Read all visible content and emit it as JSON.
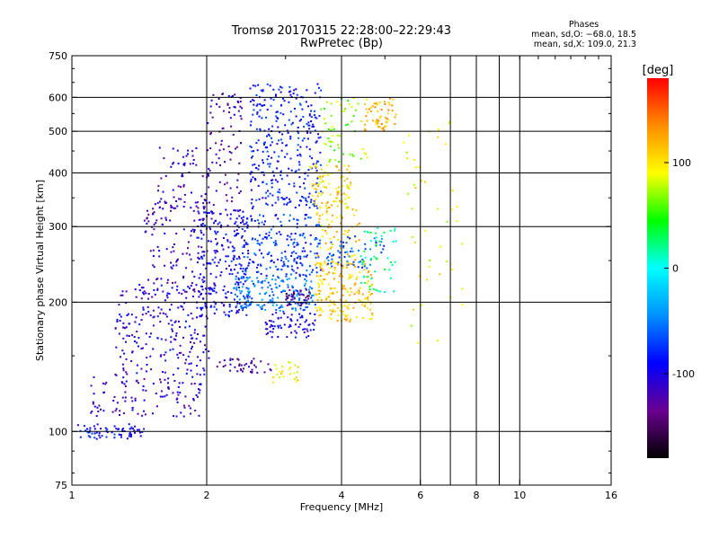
{
  "chart_data": {
    "type": "scatter",
    "title": "Tromsø 20170315 22:28:00–22:29:43",
    "subtitle": "RwPretec (Bp)",
    "xlabel": "Frequency [MHz]",
    "ylabel": "Stationary phase Virtual Height [km]",
    "x_scale": "log",
    "y_scale": "log",
    "xlim": [
      1,
      16
    ],
    "ylim": [
      75,
      750
    ],
    "grid": true,
    "x_ticks": [
      1,
      2,
      4,
      6,
      8,
      10,
      16
    ],
    "x_tick_labels": [
      "1",
      "2",
      "4",
      "6",
      "8",
      "10",
      "16"
    ],
    "x_gridlines": [
      2,
      4,
      6,
      7,
      8,
      9,
      10
    ],
    "y_ticks": [
      75,
      100,
      200,
      300,
      400,
      500,
      600,
      750
    ],
    "y_tick_labels": [
      "75",
      "100",
      "200",
      "300",
      "400",
      "500",
      "600",
      "750"
    ],
    "y_gridlines": [
      100,
      200,
      300,
      400,
      500,
      600
    ],
    "colorbar": {
      "label": "[deg]",
      "range": [
        -180,
        180
      ],
      "ticks": [
        100,
        0,
        -100
      ],
      "tick_labels": [
        "100",
        "0",
        "-100"
      ],
      "colors": [
        "#000000",
        "#6a0090",
        "#0000ff",
        "#0090ff",
        "#00ffff",
        "#00ff00",
        "#ffff00",
        "#ff8c00",
        "#ff0000"
      ]
    },
    "phase_info": {
      "heading": "Phases",
      "line_o": "mean, sd,O: −68.0, 18.5",
      "line_x": "mean, sd,X: 109.0, 21.3"
    },
    "clusters": [
      {
        "f": [
          1.0,
          1.45
        ],
        "h": [
          96,
          104
        ],
        "phase": -90,
        "n": 70
      },
      {
        "f": [
          1.1,
          1.95
        ],
        "h": [
          108,
          135
        ],
        "phase": -110,
        "n": 110
      },
      {
        "f": [
          1.25,
          2.05
        ],
        "h": [
          135,
          220
        ],
        "phase": -105,
        "n": 220
      },
      {
        "f": [
          1.45,
          2.1
        ],
        "h": [
          210,
          350
        ],
        "phase": -115,
        "n": 150
      },
      {
        "f": [
          1.55,
          2.05
        ],
        "h": [
          330,
          460
        ],
        "phase": -110,
        "n": 60
      },
      {
        "f": [
          1.9,
          2.5
        ],
        "h": [
          185,
          330
        ],
        "phase": -95,
        "n": 230
      },
      {
        "f": [
          2.0,
          2.4
        ],
        "h": [
          340,
          620
        ],
        "phase": -120,
        "n": 80
      },
      {
        "f": [
          2.1,
          2.8
        ],
        "h": [
          137,
          148
        ],
        "phase": -125,
        "n": 40
      },
      {
        "f": [
          2.3,
          3.5
        ],
        "h": [
          190,
          230
        ],
        "phase": -55,
        "n": 180
      },
      {
        "f": [
          2.4,
          3.6
        ],
        "h": [
          230,
          320
        ],
        "phase": -75,
        "n": 200
      },
      {
        "f": [
          2.5,
          3.6
        ],
        "h": [
          330,
          650
        ],
        "phase": -85,
        "n": 320
      },
      {
        "f": [
          2.7,
          3.5
        ],
        "h": [
          165,
          190
        ],
        "phase": -100,
        "n": 70
      },
      {
        "f": [
          3.0,
          3.4
        ],
        "h": [
          195,
          215
        ],
        "phase": -140,
        "n": 40
      },
      {
        "f": [
          2.8,
          3.2
        ],
        "h": [
          130,
          145
        ],
        "phase": 95,
        "n": 25
      },
      {
        "f": [
          3.5,
          4.7
        ],
        "h": [
          180,
          250
        ],
        "phase": 110,
        "n": 200
      },
      {
        "f": [
          3.4,
          4.2
        ],
        "h": [
          330,
          420
        ],
        "phase": 105,
        "n": 100
      },
      {
        "f": [
          3.5,
          4.4
        ],
        "h": [
          250,
          330
        ],
        "phase": 110,
        "n": 60
      },
      {
        "f": [
          3.7,
          5.0
        ],
        "h": [
          240,
          290
        ],
        "phase": -60,
        "n": 60
      },
      {
        "f": [
          3.6,
          4.6
        ],
        "h": [
          420,
          600
        ],
        "phase": 70,
        "n": 60
      },
      {
        "f": [
          4.5,
          5.3
        ],
        "h": [
          500,
          600
        ],
        "phase": 120,
        "n": 60
      },
      {
        "f": [
          4.4,
          5.3
        ],
        "h": [
          210,
          300
        ],
        "phase": 20,
        "n": 50
      },
      {
        "f": [
          5.5,
          7.5
        ],
        "h": [
          160,
          560
        ],
        "phase": 90,
        "n": 45
      }
    ]
  }
}
